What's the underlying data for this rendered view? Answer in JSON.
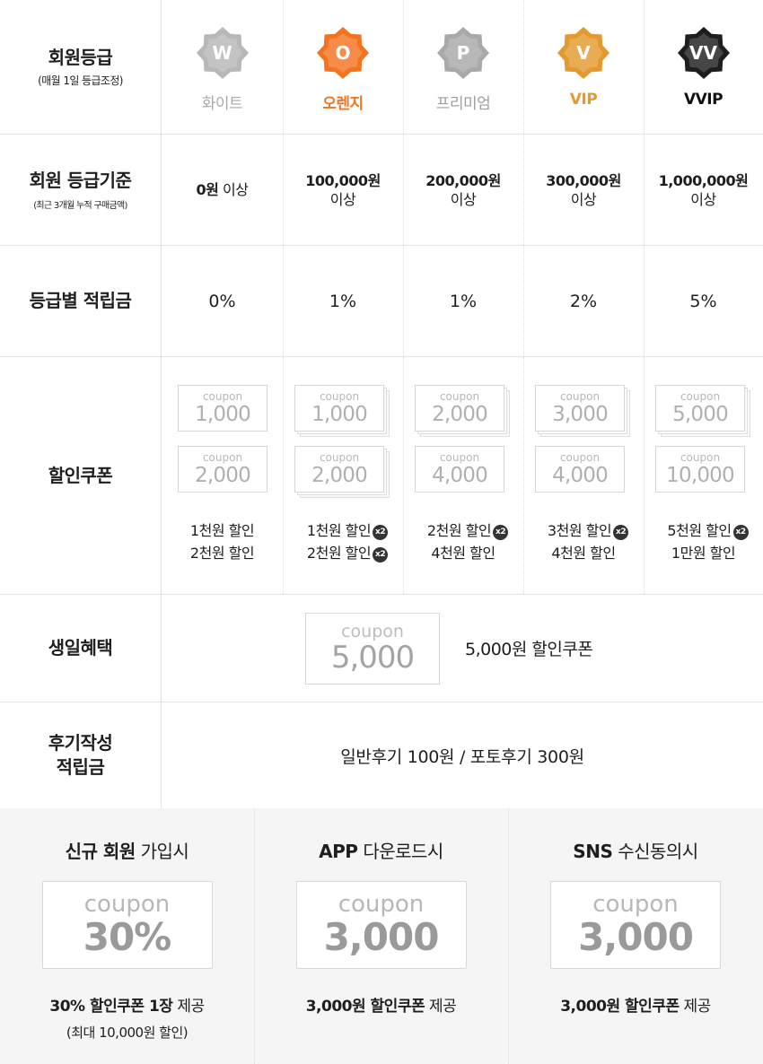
{
  "header": {
    "label": "회원등급",
    "sub": "(매월 1일 등급조정)",
    "grades": [
      {
        "letter": "W",
        "name": "화이트",
        "color": "#b8b8b8",
        "name_color": "#a8a8a8",
        "icon": "white-grade-badge-icon"
      },
      {
        "letter": "O",
        "name": "오렌지",
        "color": "#f37321",
        "name_color": "#f07421",
        "icon": "orange-grade-badge-icon"
      },
      {
        "letter": "P",
        "name": "프리미엄",
        "color": "#a9a9a9",
        "name_color": "#9e9e9e",
        "icon": "premium-grade-badge-icon"
      },
      {
        "letter": "V",
        "name": "VIP",
        "color": "#e29a2f",
        "name_color": "#e49a30",
        "icon": "vip-grade-badge-icon"
      },
      {
        "letter": "VV",
        "name": "VVIP",
        "color": "#1e1e1e",
        "name_color": "#111111",
        "icon": "vvip-grade-badge-icon"
      }
    ]
  },
  "criteria": {
    "label": "회원 등급기준",
    "sub": "(최근 3개월 누적 구매금액)",
    "values": [
      {
        "amount": "0원",
        "suffix": "이상"
      },
      {
        "amount": "100,000원",
        "suffix": "이상"
      },
      {
        "amount": "200,000원",
        "suffix": "이상"
      },
      {
        "amount": "300,000원",
        "suffix": "이상"
      },
      {
        "amount": "1,000,000원",
        "suffix": "이상"
      }
    ]
  },
  "points": {
    "label": "등급별 적립금",
    "values": [
      "0%",
      "1%",
      "1%",
      "2%",
      "5%"
    ]
  },
  "coupons": {
    "label": "할인쿠폰",
    "coupon_word": "coupon",
    "badge": "x2",
    "grades": [
      {
        "c1": "1,000",
        "c2": "2,000",
        "d1": "1천원 할인",
        "d2": "2천원 할인",
        "x1": false,
        "x2": false,
        "s1": false,
        "s2": false
      },
      {
        "c1": "1,000",
        "c2": "2,000",
        "d1": "1천원 할인",
        "d2": "2천원 할인",
        "x1": true,
        "x2": true,
        "s1": true,
        "s2": true
      },
      {
        "c1": "2,000",
        "c2": "4,000",
        "d1": "2천원 할인",
        "d2": "4천원 할인",
        "x1": true,
        "x2": false,
        "s1": true,
        "s2": false
      },
      {
        "c1": "3,000",
        "c2": "4,000",
        "d1": "3천원 할인",
        "d2": "4천원 할인",
        "x1": true,
        "x2": false,
        "s1": true,
        "s2": false
      },
      {
        "c1": "5,000",
        "c2": "10,000",
        "d1": "5천원 할인",
        "d2": "1만원 할인",
        "x1": true,
        "x2": false,
        "s1": true,
        "s2": false
      }
    ]
  },
  "birthday": {
    "label": "생일혜택",
    "coupon_word": "coupon",
    "value": "5,000",
    "desc": "5,000원 할인쿠폰"
  },
  "review": {
    "label_line1": "후기작성",
    "label_line2": "적립금",
    "desc": "일반후기 100원 / 포토후기 300원"
  },
  "extras": [
    {
      "title_bold": "신규 회원",
      "title_rest": " 가입시",
      "coupon_word": "coupon",
      "value": "30%",
      "desc_bold": "30% 할인쿠폰 1장",
      "desc_rest": " 제공",
      "sub": "(최대 10,000원 할인)"
    },
    {
      "title_bold": "APP",
      "title_rest": " 다운로드시",
      "coupon_word": "coupon",
      "value": "3,000",
      "desc_bold": "3,000원 할인쿠폰",
      "desc_rest": " 제공",
      "sub": ""
    },
    {
      "title_bold": "SNS",
      "title_rest": " 수신동의시",
      "coupon_word": "coupon",
      "value": "3,000",
      "desc_bold": "3,000원 할인쿠폰",
      "desc_rest": " 제공",
      "sub": ""
    }
  ]
}
